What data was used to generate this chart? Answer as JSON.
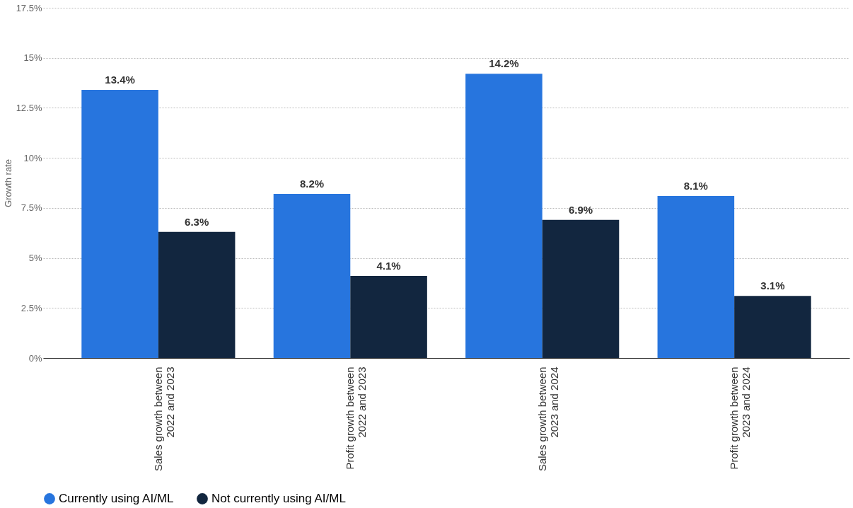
{
  "chart_data": {
    "type": "bar",
    "ylabel": "Growth rate",
    "categories": [
      "Sales growth between 2022 and 2023",
      "Profit growth between 2022 and 2023",
      "Sales growth between 2023 and 2024",
      "Profit growth between 2023 and 2024"
    ],
    "series": [
      {
        "name": "Currently using AI/ML",
        "color": "#2775de",
        "values": [
          13.4,
          8.2,
          14.2,
          8.1
        ],
        "value_labels": [
          "13.4%",
          "8.2%",
          "14.2%",
          "8.1%"
        ]
      },
      {
        "name": "Not currently using AI/ML",
        "color": "#12263f",
        "values": [
          6.3,
          4.1,
          6.9,
          3.1
        ],
        "value_labels": [
          "6.3%",
          "4.1%",
          "6.9%",
          "3.1%"
        ]
      }
    ],
    "ylim": [
      0,
      17.5
    ],
    "yticks": [
      {
        "value": 0,
        "label": "0%"
      },
      {
        "value": 2.5,
        "label": "2.5%"
      },
      {
        "value": 5,
        "label": "5%"
      },
      {
        "value": 7.5,
        "label": "7.5%"
      },
      {
        "value": 10,
        "label": "10%"
      },
      {
        "value": 12.5,
        "label": "12.5%"
      },
      {
        "value": 15,
        "label": "15%"
      },
      {
        "value": 17.5,
        "label": "17.5%"
      }
    ],
    "grid": "y",
    "legend": "bottom"
  }
}
